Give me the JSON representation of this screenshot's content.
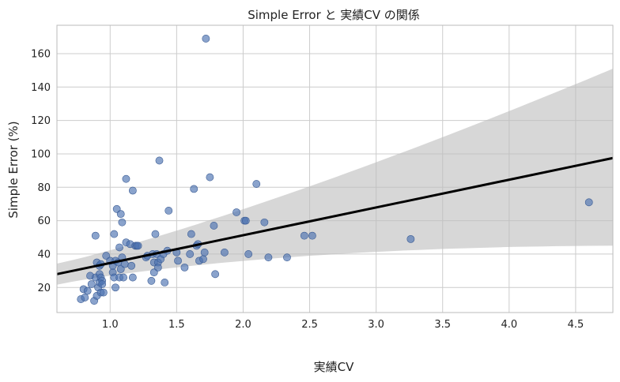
{
  "chart_data": {
    "type": "scatter",
    "title": "Simple Error と 実績CV の関係",
    "xlabel": "実績CV",
    "ylabel": "Simple Error (%)",
    "xlim": [
      0.6,
      4.78
    ],
    "ylim": [
      5,
      177
    ],
    "xticks": [
      1.0,
      1.5,
      2.0,
      2.5,
      3.0,
      3.5,
      4.0,
      4.5
    ],
    "xtick_labels": [
      "1.0",
      "1.5",
      "2.0",
      "2.5",
      "3.0",
      "3.5",
      "4.0",
      "4.5"
    ],
    "yticks": [
      20,
      40,
      60,
      80,
      100,
      120,
      140,
      160
    ],
    "ytick_labels": [
      "20",
      "40",
      "60",
      "80",
      "100",
      "120",
      "140",
      "160"
    ],
    "grid": true,
    "colors": {
      "points": "#4c72b0",
      "fit_line": "#000000",
      "band": "#bdbdbd"
    },
    "regression": {
      "x_start": 0.6,
      "y_start": 28.0,
      "x_end": 4.78,
      "y_end": 97.5,
      "ci_upper_start": 32.5,
      "ci_lower_start": 23.5,
      "ci_upper_end": 151.0,
      "ci_lower_end": 45.0
    },
    "points": [
      [
        0.78,
        13
      ],
      [
        0.81,
        14
      ],
      [
        0.8,
        19
      ],
      [
        0.83,
        18
      ],
      [
        0.86,
        22
      ],
      [
        0.85,
        27
      ],
      [
        0.88,
        12
      ],
      [
        0.89,
        26
      ],
      [
        0.9,
        15
      ],
      [
        0.9,
        35
      ],
      [
        0.91,
        20
      ],
      [
        0.92,
        23
      ],
      [
        0.92,
        28
      ],
      [
        0.93,
        17
      ],
      [
        0.93,
        26
      ],
      [
        0.94,
        24
      ],
      [
        0.94,
        22
      ],
      [
        0.95,
        17
      ],
      [
        0.89,
        51
      ],
      [
        0.92,
        33
      ],
      [
        0.93,
        34
      ],
      [
        0.97,
        39
      ],
      [
        1.0,
        36
      ],
      [
        1.02,
        29
      ],
      [
        1.02,
        33
      ],
      [
        1.03,
        52
      ],
      [
        1.04,
        36
      ],
      [
        1.03,
        26
      ],
      [
        1.04,
        20
      ],
      [
        1.05,
        67
      ],
      [
        1.06,
        35
      ],
      [
        1.07,
        26
      ],
      [
        1.07,
        44
      ],
      [
        1.08,
        31
      ],
      [
        1.08,
        64
      ],
      [
        1.09,
        59
      ],
      [
        1.09,
        38
      ],
      [
        1.1,
        26
      ],
      [
        1.11,
        34
      ],
      [
        1.12,
        47
      ],
      [
        1.12,
        85
      ],
      [
        1.15,
        46
      ],
      [
        1.16,
        33
      ],
      [
        1.17,
        78
      ],
      [
        1.17,
        26
      ],
      [
        1.19,
        45
      ],
      [
        1.2,
        45
      ],
      [
        1.21,
        45
      ],
      [
        1.27,
        38
      ],
      [
        1.28,
        39
      ],
      [
        1.31,
        24
      ],
      [
        1.32,
        40
      ],
      [
        1.33,
        29
      ],
      [
        1.33,
        35
      ],
      [
        1.34,
        52
      ],
      [
        1.35,
        40
      ],
      [
        1.36,
        35
      ],
      [
        1.36,
        32
      ],
      [
        1.37,
        96
      ],
      [
        1.38,
        37
      ],
      [
        1.4,
        40
      ],
      [
        1.41,
        23
      ],
      [
        1.43,
        42
      ],
      [
        1.44,
        66
      ],
      [
        1.5,
        41
      ],
      [
        1.51,
        36
      ],
      [
        1.56,
        32
      ],
      [
        1.6,
        40
      ],
      [
        1.61,
        52
      ],
      [
        1.63,
        79
      ],
      [
        1.65,
        45
      ],
      [
        1.66,
        46
      ],
      [
        1.67,
        36
      ],
      [
        1.7,
        37
      ],
      [
        1.71,
        41
      ],
      [
        1.72,
        169
      ],
      [
        1.75,
        86
      ],
      [
        1.78,
        57
      ],
      [
        1.79,
        28
      ],
      [
        1.86,
        41
      ],
      [
        1.95,
        65
      ],
      [
        2.01,
        60
      ],
      [
        2.02,
        60
      ],
      [
        2.04,
        40
      ],
      [
        2.1,
        82
      ],
      [
        2.16,
        59
      ],
      [
        2.19,
        38
      ],
      [
        2.33,
        38
      ],
      [
        2.46,
        51
      ],
      [
        2.52,
        51
      ],
      [
        3.26,
        49
      ],
      [
        4.6,
        71
      ]
    ]
  }
}
